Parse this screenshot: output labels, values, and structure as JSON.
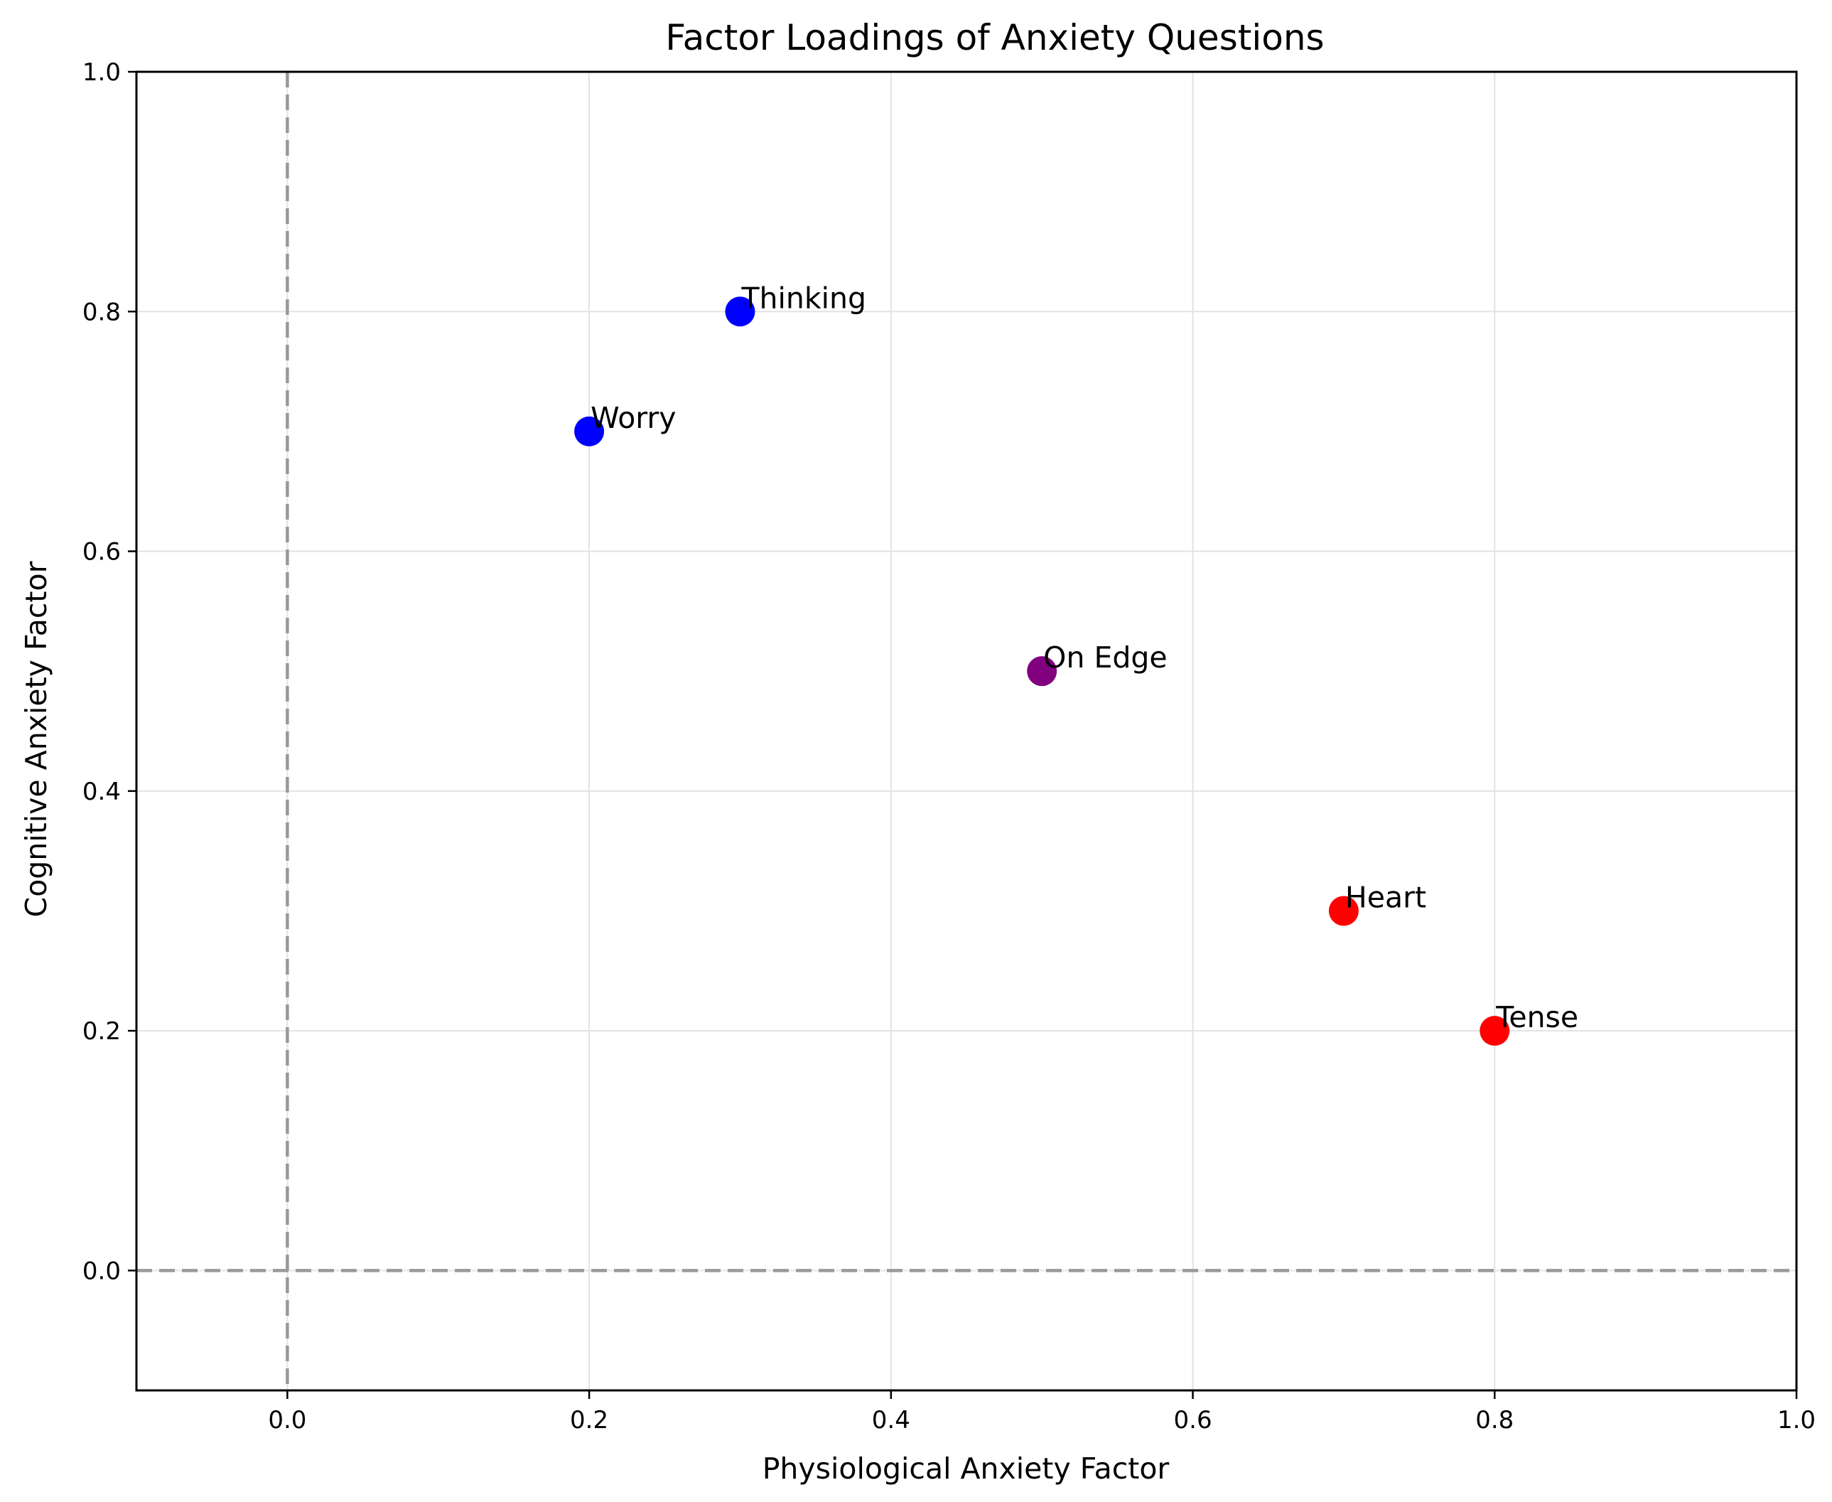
{
  "chart_data": {
    "type": "scatter",
    "title": "Factor Loadings of Anxiety Questions",
    "xlabel": "Physiological Anxiety Factor",
    "ylabel": "Cognitive Anxiety Factor",
    "xlim": [
      -0.1,
      1.0
    ],
    "ylim": [
      -0.1,
      1.0
    ],
    "xticks": [
      "0.0",
      "0.2",
      "0.4",
      "0.6",
      "0.8",
      "1.0"
    ],
    "yticks": [
      "0.0",
      "0.2",
      "0.4",
      "0.6",
      "0.8",
      "1.0"
    ],
    "grid": true,
    "reference_lines": [
      {
        "orientation": "vertical",
        "value": 0.0,
        "style": "dashed",
        "color": "#999999"
      },
      {
        "orientation": "horizontal",
        "value": 0.0,
        "style": "dashed",
        "color": "#999999"
      }
    ],
    "points": [
      {
        "label": "Worry",
        "x": 0.2,
        "y": 0.7,
        "color": "#0000ff"
      },
      {
        "label": "Thinking",
        "x": 0.3,
        "y": 0.8,
        "color": "#0000ff"
      },
      {
        "label": "On Edge",
        "x": 0.5,
        "y": 0.5,
        "color": "#800080"
      },
      {
        "label": "Heart",
        "x": 0.7,
        "y": 0.3,
        "color": "#ff0000"
      },
      {
        "label": "Tense",
        "x": 0.8,
        "y": 0.2,
        "color": "#ff0000"
      }
    ]
  }
}
